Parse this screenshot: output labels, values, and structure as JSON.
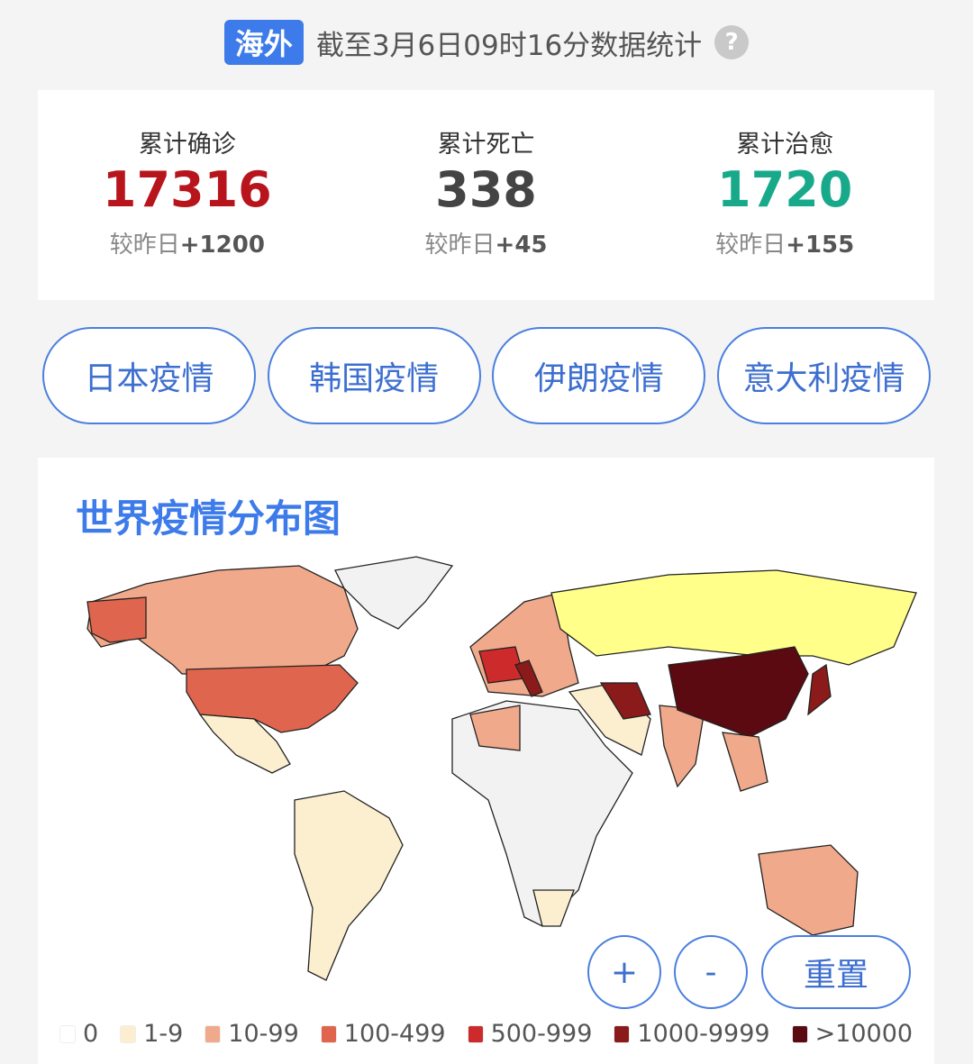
{
  "header": {
    "tag": "海外",
    "update": "截至3月6日09时16分数据统计",
    "help_icon": "question-circle-icon"
  },
  "stats": [
    {
      "label": "累计确诊",
      "value": "17316",
      "delta_label": "较昨日",
      "delta": "+1200",
      "color": "#b8141c"
    },
    {
      "label": "累计死亡",
      "value": "338",
      "delta_label": "较昨日",
      "delta": "+45",
      "color": "#444444"
    },
    {
      "label": "累计治愈",
      "value": "1720",
      "delta_label": "较昨日",
      "delta": "+155",
      "color": "#17a98a"
    }
  ],
  "buttons": [
    "日本疫情",
    "韩国疫情",
    "伊朗疫情",
    "意大利疫情"
  ],
  "map": {
    "title": "世界疫情分布图",
    "zoom_in": "+",
    "zoom_out": "-",
    "reset": "重置",
    "legend": [
      {
        "label": "0",
        "color": "#ffffff"
      },
      {
        "label": "1-9",
        "color": "#fbefcf"
      },
      {
        "label": "10-99",
        "color": "#f0a98a"
      },
      {
        "label": "100-499",
        "color": "#e0654e"
      },
      {
        "label": "500-999",
        "color": "#cd2b2b"
      },
      {
        "label": "1000-9999",
        "color": "#8b1a1a"
      },
      {
        "label": ">10000",
        "color": "#5a0a10"
      }
    ]
  }
}
